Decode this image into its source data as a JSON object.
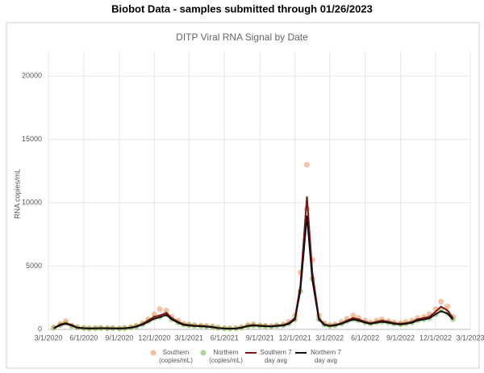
{
  "page_title": "Biobot Data - samples submitted through 01/26/2023",
  "chart_data": {
    "type": "scatter-line",
    "title": "DITP Viral RNA Signal by Date",
    "y_label": "RNA copies/mL",
    "x": [
      "3/15/2020",
      "4/1/2020",
      "4/15/2020",
      "5/1/2020",
      "5/15/2020",
      "6/1/2020",
      "6/15/2020",
      "7/1/2020",
      "7/15/2020",
      "8/1/2020",
      "8/15/2020",
      "9/1/2020",
      "9/15/2020",
      "10/1/2020",
      "10/15/2020",
      "11/1/2020",
      "11/15/2020",
      "12/1/2020",
      "12/15/2020",
      "1/1/2021",
      "1/15/2021",
      "2/1/2021",
      "2/15/2021",
      "3/1/2021",
      "3/15/2021",
      "4/1/2021",
      "4/15/2021",
      "5/1/2021",
      "5/15/2021",
      "6/1/2021",
      "6/15/2021",
      "7/1/2021",
      "7/15/2021",
      "8/1/2021",
      "8/15/2021",
      "9/1/2021",
      "9/15/2021",
      "10/1/2021",
      "10/15/2021",
      "11/1/2021",
      "11/15/2021",
      "12/1/2021",
      "12/15/2021",
      "1/1/2022",
      "1/15/2022",
      "2/1/2022",
      "2/15/2022",
      "3/1/2022",
      "3/15/2022",
      "4/1/2022",
      "4/15/2022",
      "5/1/2022",
      "5/15/2022",
      "6/1/2022",
      "6/15/2022",
      "7/1/2022",
      "7/15/2022",
      "8/1/2022",
      "8/15/2022",
      "9/1/2022",
      "9/15/2022",
      "10/1/2022",
      "10/15/2022",
      "11/1/2022",
      "11/15/2022",
      "12/1/2022",
      "12/15/2022",
      "1/1/2023",
      "1/15/2023"
    ],
    "series": [
      {
        "name": "Southern (copies/mL)",
        "kind": "scatter",
        "color": "#f0a272",
        "values": [
          150,
          450,
          650,
          300,
          180,
          120,
          90,
          110,
          130,
          100,
          110,
          90,
          120,
          180,
          300,
          520,
          800,
          1200,
          1600,
          1500,
          1000,
          700,
          450,
          400,
          350,
          300,
          280,
          230,
          150,
          100,
          90,
          100,
          180,
          350,
          420,
          330,
          300,
          260,
          330,
          400,
          600,
          1100,
          4500,
          13000,
          5500,
          1100,
          500,
          350,
          400,
          600,
          850,
          1100,
          900,
          700,
          550,
          700,
          800,
          650,
          550,
          500,
          600,
          700,
          900,
          1000,
          1200,
          1600,
          2200,
          1800,
          1000
        ]
      },
      {
        "name": "Northern (copies/mL)",
        "kind": "scatter",
        "color": "#8cc46a",
        "values": [
          120,
          350,
          500,
          280,
          140,
          100,
          70,
          80,
          90,
          80,
          90,
          70,
          90,
          140,
          220,
          400,
          650,
          900,
          1000,
          1200,
          800,
          550,
          380,
          320,
          280,
          260,
          230,
          180,
          110,
          70,
          60,
          70,
          130,
          260,
          300,
          280,
          250,
          240,
          280,
          320,
          450,
          800,
          3000,
          9500,
          4000,
          800,
          380,
          280,
          320,
          450,
          650,
          800,
          700,
          550,
          450,
          550,
          600,
          550,
          450,
          400,
          450,
          550,
          700,
          800,
          900,
          1200,
          1500,
          1300,
          800
        ]
      },
      {
        "name": "Southern 7 day avg",
        "kind": "line",
        "color": "#8b1010",
        "values": [
          100,
          400,
          500,
          350,
          150,
          100,
          80,
          90,
          100,
          100,
          90,
          80,
          100,
          150,
          250,
          450,
          700,
          1000,
          1100,
          1300,
          900,
          600,
          400,
          350,
          300,
          280,
          250,
          200,
          120,
          80,
          70,
          80,
          150,
          300,
          350,
          300,
          280,
          250,
          300,
          350,
          500,
          900,
          3500,
          10500,
          4500,
          900,
          400,
          300,
          350,
          500,
          700,
          900,
          800,
          600,
          500,
          600,
          700,
          600,
          500,
          450,
          500,
          600,
          800,
          900,
          1000,
          1400,
          1800,
          1500,
          900
        ]
      },
      {
        "name": "Northern 7 day avg",
        "kind": "line",
        "color": "#111111",
        "values": [
          90,
          330,
          450,
          300,
          130,
          90,
          70,
          80,
          90,
          85,
          80,
          70,
          85,
          130,
          210,
          380,
          600,
          850,
          950,
          1150,
          800,
          520,
          360,
          300,
          270,
          250,
          220,
          170,
          100,
          70,
          60,
          70,
          130,
          260,
          300,
          270,
          250,
          230,
          270,
          310,
          440,
          780,
          3100,
          9000,
          3900,
          780,
          360,
          270,
          310,
          440,
          620,
          780,
          690,
          530,
          440,
          530,
          600,
          530,
          440,
          390,
          440,
          530,
          700,
          790,
          880,
          1200,
          1450,
          1250,
          780
        ]
      }
    ],
    "xlim": [
      "3/1/2020",
      "3/1/2023"
    ],
    "xticks": [
      "3/1/2020",
      "6/1/2020",
      "9/1/2020",
      "12/1/2020",
      "3/1/2021",
      "6/1/2021",
      "9/1/2021",
      "12/1/2021",
      "3/1/2022",
      "6/1/2022",
      "9/1/2022",
      "12/1/2022",
      "3/1/2023"
    ],
    "ylim": [
      0,
      22000
    ],
    "yticks": [
      0,
      5000,
      10000,
      15000,
      20000
    ],
    "grid": true
  }
}
